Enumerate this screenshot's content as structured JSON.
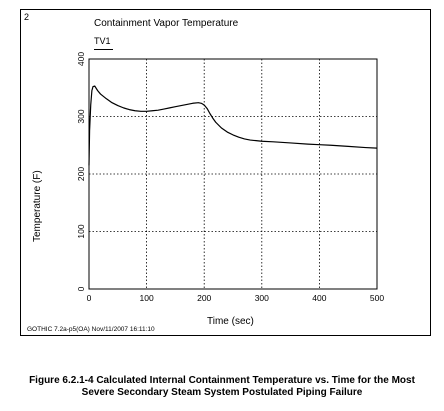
{
  "panel_number": "2",
  "chart_title": "Containment Vapor Temperature",
  "legend_label": "TV1",
  "footer_stamp": "GOTHIC 7.2a-p5(OA) Nov/11/2007 16:11:10",
  "caption_line1": "Figure 6.2.1-4  Calculated Internal Containment Temperature vs. Time for the Most",
  "caption_line2": "Severe Secondary Steam System Postulated Piping Failure",
  "chart_data": {
    "type": "line",
    "title": "Containment Vapor Temperature",
    "xlabel": "Time (sec)",
    "ylabel": "Temperature (F)",
    "xlim": [
      0,
      500
    ],
    "ylim": [
      0,
      400
    ],
    "x_ticks": [
      0,
      100,
      200,
      300,
      400,
      500
    ],
    "y_ticks": [
      0,
      100,
      200,
      300,
      400
    ],
    "grid": "dotted",
    "legend_position": "top-left",
    "series": [
      {
        "name": "TV1",
        "color": "#000000",
        "x": [
          0,
          1,
          3,
          5,
          7,
          10,
          15,
          20,
          30,
          40,
          50,
          60,
          70,
          80,
          90,
          100,
          110,
          120,
          130,
          140,
          150,
          160,
          170,
          180,
          190,
          195,
          200,
          205,
          210,
          215,
          220,
          230,
          240,
          250,
          260,
          270,
          280,
          290,
          300,
          320,
          350,
          380,
          400,
          420,
          450,
          480,
          500
        ],
        "y": [
          215,
          275,
          320,
          345,
          352,
          353,
          345,
          339,
          331,
          324,
          319,
          315,
          312,
          310,
          309,
          309,
          310,
          311,
          313,
          315,
          317,
          319,
          321,
          323,
          324,
          323,
          320,
          314,
          305,
          297,
          290,
          280,
          273,
          268,
          264,
          261,
          259,
          258,
          257,
          256,
          254,
          252,
          251,
          250,
          248,
          246,
          245
        ]
      }
    ]
  }
}
